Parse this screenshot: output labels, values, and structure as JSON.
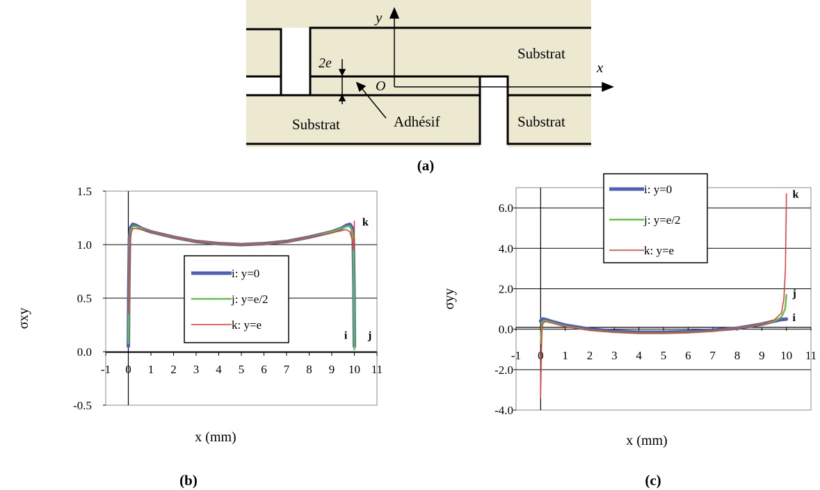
{
  "diagram": {
    "substrate_label": "Substrat",
    "adhesive_label": "Adhésif",
    "thickness_label": "2e",
    "origin_label": "O",
    "x_axis_label": "x",
    "y_axis_label": "y",
    "fill_color": "#ede8d0"
  },
  "captions": {
    "a": "(a)",
    "b": "(b)",
    "c": "(c)"
  },
  "colors": {
    "i": "#4f5fb8",
    "j": "#62c04a",
    "k": "#ee3530"
  },
  "chart_data": [
    {
      "type": "line",
      "ylabel": "σxy",
      "xlabel": "x (mm)",
      "xlim": [
        -1,
        11
      ],
      "ylim": [
        -0.5,
        1.5
      ],
      "xticks": [
        "-1",
        "0",
        "1",
        "2",
        "3",
        "4",
        "5",
        "6",
        "7",
        "8",
        "9",
        "10",
        "11"
      ],
      "yticks": [
        "-0.5",
        "0.0",
        "0.5",
        "1.0",
        "1.5"
      ],
      "grid": "horizontal",
      "legend_position": "center",
      "legend": [
        "i: y=0",
        "j: y=e/2",
        "k: y=e"
      ],
      "end_labels": [
        {
          "text": "k",
          "x": 10.35,
          "y": 1.18
        },
        {
          "text": "i",
          "x": 9.55,
          "y": 0.12
        },
        {
          "text": "j",
          "x": 10.6,
          "y": 0.12
        }
      ],
      "series": [
        {
          "name": "i: y=0",
          "color_key": "i",
          "width": 5,
          "x": [
            0.0,
            0.02,
            0.05,
            0.1,
            0.2,
            0.35,
            0.6,
            1,
            2,
            3,
            4,
            5,
            6,
            7,
            8,
            9,
            9.4,
            9.65,
            9.8,
            9.9,
            9.95,
            9.98,
            10.0
          ],
          "y": [
            0.05,
            0.6,
            1.05,
            1.16,
            1.19,
            1.18,
            1.15,
            1.12,
            1.07,
            1.03,
            1.01,
            1.0,
            1.01,
            1.03,
            1.07,
            1.12,
            1.15,
            1.18,
            1.19,
            1.16,
            1.05,
            0.6,
            0.05
          ]
        },
        {
          "name": "j: y=e/2",
          "color_key": "j",
          "width": 2.5,
          "x": [
            0.0,
            0.02,
            0.05,
            0.1,
            0.2,
            0.35,
            0.6,
            1,
            2,
            3,
            4,
            5,
            6,
            7,
            8,
            9,
            9.4,
            9.65,
            9.8,
            9.9,
            9.95,
            9.98,
            10.0
          ],
          "y": [
            0.08,
            0.55,
            1.0,
            1.13,
            1.17,
            1.17,
            1.15,
            1.12,
            1.07,
            1.03,
            1.01,
            1.0,
            1.01,
            1.03,
            1.07,
            1.12,
            1.15,
            1.17,
            1.17,
            1.13,
            1.0,
            0.55,
            0.02
          ]
        },
        {
          "name": "k: y=e",
          "color_key": "k",
          "width": 1.5,
          "x": [
            0.0,
            0.05,
            0.1,
            0.2,
            0.35,
            0.6,
            1,
            2,
            3,
            4,
            5,
            6,
            7,
            8,
            9,
            9.4,
            9.65,
            9.8,
            9.9,
            9.95,
            10.0,
            10.0
          ],
          "y": [
            0.35,
            0.95,
            1.1,
            1.15,
            1.15,
            1.14,
            1.12,
            1.07,
            1.03,
            1.01,
            1.0,
            1.01,
            1.03,
            1.07,
            1.11,
            1.13,
            1.14,
            1.12,
            1.05,
            0.95,
            1.1,
            1.22
          ]
        }
      ]
    },
    {
      "type": "line",
      "ylabel": "σyy",
      "xlabel": "x (mm)",
      "xlim": [
        -1,
        11
      ],
      "ylim": [
        -4.0,
        7.0
      ],
      "xticks": [
        "-1",
        "0",
        "1",
        "2",
        "3",
        "4",
        "5",
        "6",
        "7",
        "8",
        "9",
        "10",
        "11"
      ],
      "yticks": [
        "-4.0",
        "-2.0",
        "0.0",
        "2.0",
        "4.0",
        "6.0"
      ],
      "grid": "horizontal",
      "legend_position": "top-center",
      "legend": [
        "i: y=0",
        "j: y=e/2",
        "k: y=e"
      ],
      "end_labels": [
        {
          "text": "k",
          "x": 10.25,
          "y": 6.5
        },
        {
          "text": "j",
          "x": 10.25,
          "y": 1.6
        },
        {
          "text": "i",
          "x": 10.25,
          "y": 0.4
        }
      ],
      "series": [
        {
          "name": "i: y=0",
          "color_key": "i",
          "width": 5,
          "x": [
            0.0,
            0.05,
            0.1,
            0.2,
            0.4,
            0.7,
            1,
            2,
            3,
            4,
            5,
            6,
            7,
            8,
            9,
            9.5,
            9.8,
            10.0
          ],
          "y": [
            0.4,
            0.5,
            0.5,
            0.48,
            0.4,
            0.3,
            0.2,
            0.0,
            -0.1,
            -0.15,
            -0.15,
            -0.12,
            -0.05,
            0.05,
            0.25,
            0.4,
            0.48,
            0.5
          ]
        },
        {
          "name": "j: y=e/2",
          "color_key": "j",
          "width": 2.5,
          "x": [
            0.0,
            0.05,
            0.1,
            0.2,
            0.4,
            0.7,
            1,
            2,
            3,
            4,
            5,
            6,
            7,
            8,
            9,
            9.5,
            9.8,
            9.95,
            10.0
          ],
          "y": [
            -0.7,
            0.2,
            0.4,
            0.42,
            0.35,
            0.25,
            0.15,
            -0.05,
            -0.15,
            -0.2,
            -0.2,
            -0.17,
            -0.1,
            0.05,
            0.25,
            0.4,
            0.6,
            1.0,
            1.7
          ]
        },
        {
          "name": "k: y=e",
          "color_key": "k",
          "width": 1.5,
          "x": [
            0.0,
            0.03,
            0.06,
            0.1,
            0.2,
            0.4,
            0.7,
            1,
            2,
            3,
            4,
            5,
            6,
            7,
            8,
            9,
            9.5,
            9.8,
            9.9,
            9.96,
            10.0
          ],
          "y": [
            -3.4,
            -1.0,
            0.1,
            0.3,
            0.38,
            0.32,
            0.22,
            0.12,
            -0.05,
            -0.15,
            -0.2,
            -0.2,
            -0.17,
            -0.1,
            0.05,
            0.25,
            0.45,
            0.8,
            1.5,
            3.0,
            6.7
          ]
        }
      ]
    }
  ]
}
